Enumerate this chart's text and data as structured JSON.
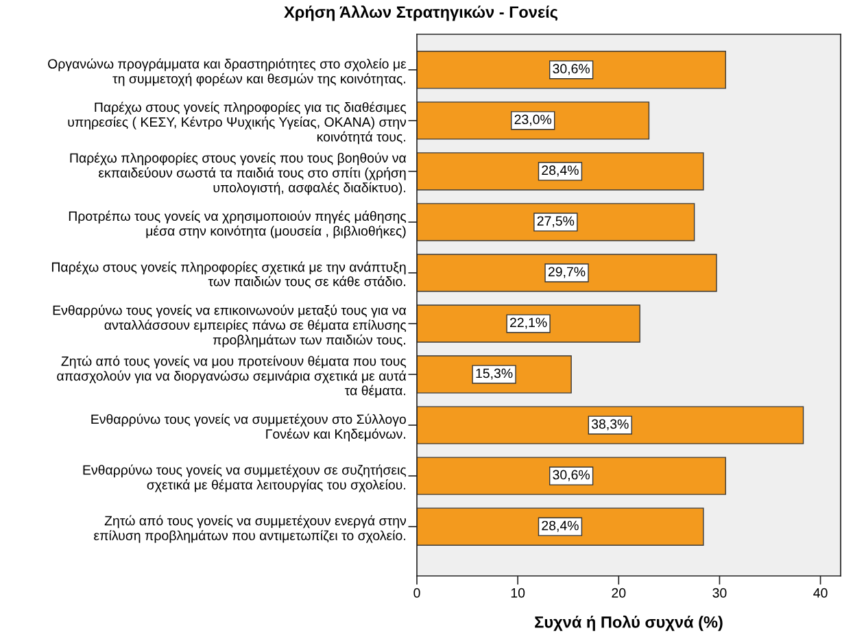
{
  "chart_data": {
    "type": "bar",
    "orientation": "horizontal",
    "title": "Χρήση Άλλων Στρατηγικών - Γονείς",
    "xlabel": "Συχνά ή Πολύ συχνά (%)",
    "categories": [
      "Οργανώνω προγράμματα και δραστηριότητες στο σχολείο με\nτη συμμετοχή φορέων και θεσμών της κοινότητας.",
      "Παρέχω στους γονείς πληροφορίες για τις διαθέσιμες\nυπηρεσίες ( ΚΕΣΥ, Κέντρο Ψυχικής Υγείας, ΟΚΑΝΑ) στην\nκοινότητά τους.",
      "Παρέχω πληροφορίες στους γονείς που τους βοηθούν να\nεκπαιδεύουν σωστά τα παιδιά τους στο σπίτι (χρήση\nυπολογιστή, ασφαλές διαδίκτυο).",
      "Προτρέπω τους γονείς να χρησιμοποιούν πηγές μάθησης\nμέσα στην κοινότητα (μουσεία , βιβλιοθήκες)",
      "Παρέχω στους γονείς πληροφορίες σχετικά με την ανάπτυξη\nτων παιδιών τους σε κάθε στάδιο.",
      "Ενθαρρύνω τους γονείς να επικοινωνούν μεταξύ τους για να\nανταλλάσσουν εμπειρίες πάνω σε θέματα επίλυσης\nπροβλημάτων των παιδιών τους.",
      "Ζητώ από τους γονείς να μου προτείνουν θέματα που τους\nαπασχολούν για να διοργανώσω σεμινάρια σχετικά με αυτά\nτα θέματα.",
      "Ενθαρρύνω τους γονείς να συμμετέχουν στο Σύλλογο\nΓονέων και Κηδεμόνων.",
      "Ενθαρρύνω τους γονείς να συμμετέχουν σε συζητήσεις\nσχετικά με θέματα λειτουργίας του σχολείου.",
      "Ζητώ από τους γονείς να συμμετέχουν ενεργά στην\nεπίλυση προβλημάτων που αντιμετωπίζει το σχολείο."
    ],
    "values": [
      30.6,
      23.0,
      28.4,
      27.5,
      29.7,
      22.1,
      15.3,
      38.3,
      30.6,
      28.4
    ],
    "value_labels": [
      "30,6%",
      "23,0%",
      "28,4%",
      "27,5%",
      "29,7%",
      "22,1%",
      "15,3%",
      "38,3%",
      "30,6%",
      "28,4%"
    ],
    "color": "#f39a1e",
    "xlim": [
      0,
      42
    ],
    "xticks": [
      0,
      10,
      20,
      30,
      40
    ],
    "grid": false
  }
}
